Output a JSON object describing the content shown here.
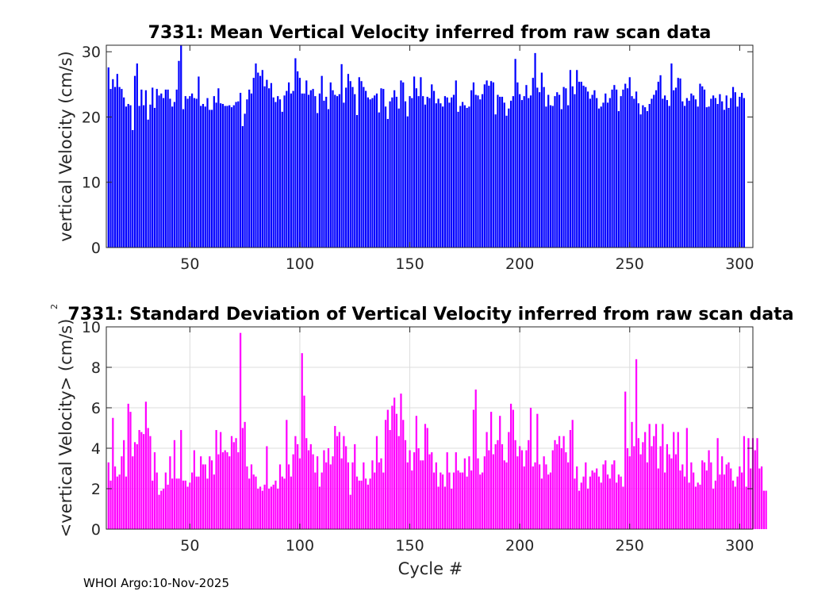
{
  "chart_data": [
    {
      "type": "bar",
      "title": "7331: Mean Vertical Velocity inferred from raw scan data",
      "xlabel": "",
      "ylabel": "vertical Velocity (cm/s)",
      "xlim": [
        12,
        306
      ],
      "ylim": [
        0,
        31
      ],
      "xticks": [
        50,
        100,
        150,
        200,
        250,
        300
      ],
      "yticks": [
        0,
        10,
        20,
        30
      ],
      "grid": false,
      "color": "#0000ff",
      "x_start": 13,
      "values": [
        27.6,
        24.3,
        25.8,
        24.6,
        26.6,
        24.6,
        24.3,
        23.0,
        21.6,
        22.0,
        21.8,
        18.0,
        26.3,
        28.2,
        21.7,
        24.2,
        21.8,
        24.1,
        19.6,
        21.9,
        24.5,
        21.4,
        24.3,
        23.3,
        23.6,
        22.9,
        24.2,
        24.2,
        22.8,
        21.6,
        22.3,
        24.2,
        28.6,
        31.2,
        21.2,
        23.2,
        22.8,
        23.2,
        23.6,
        22.9,
        22.8,
        26.2,
        21.7,
        22.0,
        21.6,
        22.9,
        21.1,
        21.1,
        23.2,
        22.2,
        24.4,
        22.1,
        22.0,
        21.7,
        21.7,
        21.8,
        21.5,
        21.8,
        22.3,
        22.4,
        23.7,
        18.6,
        20.5,
        22.7,
        24.2,
        23.6,
        26.0,
        28.2,
        26.8,
        26.3,
        27.2,
        24.7,
        25.7,
        24.4,
        25.2,
        23.0,
        22.3,
        23.2,
        22.7,
        20.8,
        23.3,
        24.0,
        25.3,
        23.6,
        24.0,
        29.0,
        27.0,
        26.0,
        23.6,
        23.6,
        25.6,
        23.4,
        24.1,
        24.3,
        23.2,
        20.6,
        23.6,
        26.3,
        22.5,
        23.1,
        21.2,
        25.3,
        24.1,
        23.4,
        23.2,
        23.5,
        28.1,
        22.2,
        24.5,
        26.6,
        25.5,
        24.6,
        23.5,
        20.3,
        26.1,
        25.5,
        24.6,
        24.0,
        23.0,
        22.7,
        22.9,
        23.3,
        23.6,
        20.7,
        24.4,
        24.3,
        21.6,
        19.7,
        22.4,
        23.0,
        24.1,
        23.1,
        21.3,
        25.6,
        25.3,
        22.4,
        20.1,
        23.2,
        22.9,
        26.2,
        24.4,
        23.2,
        26.1,
        23.2,
        21.9,
        23.1,
        22.9,
        25.0,
        24.0,
        22.1,
        22.8,
        22.1,
        21.6,
        23.2,
        23.0,
        22.2,
        23.0,
        23.4,
        25.6,
        20.8,
        21.7,
        22.3,
        21.8,
        21.4,
        21.6,
        24.1,
        25.3,
        23.4,
        23.3,
        22.7,
        23.5,
        25.0,
        25.6,
        24.8,
        25.5,
        25.3,
        20.4,
        23.4,
        23.1,
        23.1,
        22.2,
        20.2,
        21.3,
        22.5,
        23.2,
        28.9,
        25.3,
        23.5,
        22.6,
        23.2,
        24.9,
        22.9,
        23.3,
        26.0,
        29.8,
        24.5,
        23.8,
        26.8,
        24.6,
        21.6,
        23.4,
        21.8,
        21.7,
        23.2,
        23.8,
        23.4,
        21.2,
        24.6,
        24.4,
        21.8,
        27.2,
        24.7,
        23.5,
        27.2,
        25.4,
        25.4,
        24.8,
        24.6,
        23.9,
        22.8,
        23.4,
        24.1,
        22.9,
        21.3,
        21.6,
        22.2,
        23.6,
        22.2,
        22.9,
        24.2,
        24.9,
        24.2,
        20.9,
        23.2,
        24.2,
        25.1,
        24.4,
        26.1,
        23.2,
        22.8,
        23.9,
        22.1,
        20.4,
        21.8,
        21.5,
        20.9,
        22.0,
        22.8,
        23.4,
        24.1,
        25.4,
        26.4,
        22.8,
        23.3,
        22.6,
        21.7,
        28.2,
        24.1,
        24.5,
        26.0,
        25.9,
        22.4,
        21.7,
        22.9,
        22.5,
        23.6,
        23.3,
        22.7,
        21.6,
        25.1,
        24.7,
        24.2,
        21.5,
        21.6,
        22.8,
        23.3,
        22.9,
        22.0,
        23.5,
        22.4,
        21.1,
        23.3,
        21.4,
        22.9,
        24.6,
        23.8,
        21.6,
        23.1,
        23.7,
        22.9
      ]
    },
    {
      "type": "bar",
      "title": "7331: Standard Deviation of Vertical Velocity inferred from raw scan data",
      "xlabel": "Cycle #",
      "ylabel": "<vertical Velocity> (cm/s)",
      "ylabel_prefix": "2",
      "xlim": [
        12,
        306
      ],
      "ylim": [
        0,
        10
      ],
      "xticks": [
        50,
        100,
        150,
        200,
        250,
        300
      ],
      "yticks": [
        0,
        2,
        4,
        6,
        8,
        10
      ],
      "grid": true,
      "color": "#ff00ff",
      "x_start": 13,
      "values": [
        3.3,
        2.4,
        5.5,
        3.1,
        2.6,
        2.7,
        3.6,
        4.4,
        2.6,
        6.2,
        5.8,
        3.6,
        4.3,
        4.2,
        4.9,
        4.8,
        4.7,
        6.3,
        5.0,
        4.6,
        2.4,
        3.8,
        2.8,
        1.7,
        1.9,
        2.0,
        2.8,
        2.2,
        3.6,
        2.5,
        4.4,
        2.5,
        2.5,
        4.9,
        2.4,
        2.4,
        2.1,
        2.3,
        2.8,
        3.9,
        2.6,
        2.6,
        3.6,
        3.2,
        3.2,
        2.5,
        3.6,
        3.4,
        2.7,
        4.9,
        3.7,
        4.8,
        3.8,
        3.9,
        3.8,
        3.6,
        4.6,
        4.3,
        4.5,
        3.8,
        9.7,
        5.0,
        5.3,
        3.1,
        2.5,
        3.2,
        2.7,
        2.6,
        2.0,
        2.1,
        1.9,
        2.2,
        4.1,
        2.0,
        2.1,
        2.2,
        2.4,
        2.0,
        3.2,
        2.6,
        2.5,
        5.4,
        3.2,
        2.6,
        3.7,
        4.6,
        4.2,
        3.5,
        8.7,
        6.6,
        4.5,
        3.9,
        4.2,
        3.7,
        2.8,
        3.6,
        2.1,
        2.8,
        3.9,
        3.3,
        4.0,
        3.2,
        3.6,
        5.1,
        4.6,
        4.8,
        3.5,
        4.6,
        4.1,
        3.3,
        1.7,
        3.3,
        4.2,
        2.6,
        2.4,
        2.4,
        3.3,
        2.5,
        2.2,
        2.5,
        3.4,
        2.8,
        4.6,
        3.3,
        3.5,
        2.8,
        5.4,
        5.9,
        4.9,
        6.1,
        6.5,
        5.7,
        4.6,
        6.7,
        5.4,
        4.4,
        3.3,
        3.9,
        2.9,
        3.8,
        5.6,
        4.0,
        3.4,
        3.4,
        5.2,
        5.0,
        3.7,
        3.8,
        2.8,
        3.3,
        2.1,
        2.8,
        2.7,
        2.1,
        3.8,
        2.8,
        2.0,
        2.8,
        3.8,
        2.9,
        2.8,
        2.8,
        3.5,
        2.6,
        3.6,
        2.9,
        5.9,
        6.9,
        3.5,
        2.7,
        2.8,
        3.6,
        4.8,
        3.9,
        5.8,
        3.7,
        4.2,
        4.4,
        5.6,
        4.2,
        3.4,
        3.3,
        4.8,
        6.2,
        5.9,
        4.4,
        3.6,
        4.1,
        3.9,
        3.1,
        3.9,
        4.4,
        6.0,
        3.1,
        3.3,
        5.7,
        3.2,
        2.5,
        3.6,
        3.2,
        2.7,
        2.8,
        3.9,
        4.4,
        4.2,
        4.6,
        4.0,
        4.6,
        3.8,
        3.3,
        4.9,
        5.4,
        2.5,
        3.1,
        1.9,
        2.3,
        2.6,
        3.3,
        2.0,
        2.6,
        2.9,
        2.8,
        3.0,
        2.6,
        2.3,
        3.2,
        3.4,
        2.7,
        2.5,
        3.2,
        3.4,
        2.3,
        2.7,
        2.6,
        2.1,
        6.8,
        4.0,
        3.6,
        5.3,
        4.1,
        8.4,
        4.5,
        3.7,
        4.3,
        4.8,
        3.3,
        5.2,
        4.1,
        4.6,
        5.2,
        3.0,
        4.1,
        5.2,
        2.8,
        4.2,
        3.7,
        3.5,
        4.8,
        3.7,
        4.8,
        2.9,
        3.2,
        2.6,
        5.0,
        2.3,
        3.3,
        2.8,
        2.1,
        2.3,
        2.2,
        3.4,
        3.3,
        2.9,
        3.9,
        3.3,
        2.0,
        2.4,
        4.5,
        2.7,
        3.6,
        2.7,
        3.2,
        3.3,
        3.0,
        2.4,
        2.1,
        2.6,
        3.1,
        2.8,
        4.6,
        2.1,
        4.5,
        3.0,
        4.5,
        3.9,
        4.5,
        3.0,
        3.1,
        1.9,
        1.9
      ]
    }
  ],
  "footer": "WHOI Argo:10-Nov-2025"
}
